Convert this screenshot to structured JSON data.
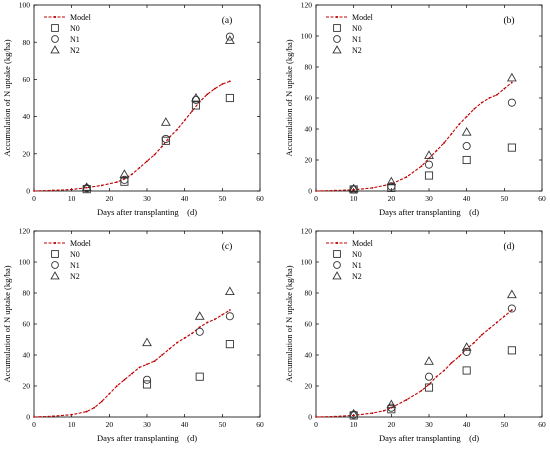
{
  "chart_data": [
    {
      "type": "scatter",
      "panel_label": "(a)",
      "xlabel": "Days after transplanting　(d)",
      "ylabel": "Accumulation of N uptake (kg/ha)",
      "xlim": [
        0,
        60
      ],
      "ylim": [
        0,
        100
      ],
      "xticks": [
        0,
        10,
        20,
        30,
        40,
        50,
        60
      ],
      "yticks": [
        0,
        20,
        40,
        60,
        80,
        100
      ],
      "legend": "top-left",
      "model": {
        "name": "Model",
        "x": [
          0,
          5,
          10,
          14,
          18,
          22,
          24,
          26,
          28,
          30,
          32,
          34,
          36,
          38,
          40,
          42,
          44,
          46,
          48,
          50,
          52
        ],
        "y": [
          0,
          0.3,
          0.8,
          1.8,
          3,
          4.8,
          6.5,
          9,
          12.5,
          16,
          19.5,
          24,
          29,
          33,
          38,
          43,
          48,
          52,
          55,
          57.5,
          59
        ]
      },
      "series": [
        {
          "name": "N0",
          "marker": "square",
          "x": [
            14,
            24,
            35,
            43,
            52
          ],
          "y": [
            1,
            5,
            27,
            46,
            50
          ]
        },
        {
          "name": "N1",
          "marker": "circle",
          "x": [
            14,
            24,
            35,
            43,
            52
          ],
          "y": [
            1.5,
            6,
            28,
            49,
            83
          ]
        },
        {
          "name": "N2",
          "marker": "triangle",
          "x": [
            14,
            24,
            35,
            43,
            52
          ],
          "y": [
            2,
            9,
            37,
            50,
            81
          ]
        }
      ]
    },
    {
      "type": "scatter",
      "panel_label": "(b)",
      "xlabel": "Days after transplanting　(d)",
      "ylabel": "Accumulation of N uptake (kg/ha)",
      "xlim": [
        0,
        60
      ],
      "ylim": [
        0,
        120
      ],
      "xticks": [
        0,
        10,
        20,
        30,
        40,
        50,
        60
      ],
      "yticks": [
        0,
        20,
        40,
        60,
        80,
        100,
        120
      ],
      "legend": "top-left",
      "model": {
        "name": "Model",
        "x": [
          0,
          5,
          10,
          15,
          20,
          24,
          28,
          30,
          32,
          34,
          36,
          38,
          40,
          42,
          44,
          46,
          48,
          50,
          52
        ],
        "y": [
          0,
          0.3,
          0.8,
          2,
          4.5,
          9,
          16,
          21,
          26,
          31,
          37,
          43,
          48,
          53,
          57,
          60,
          62,
          66,
          70
        ]
      },
      "series": [
        {
          "name": "N0",
          "marker": "square",
          "x": [
            10,
            20,
            30,
            40,
            52
          ],
          "y": [
            1,
            2,
            10,
            20,
            28
          ]
        },
        {
          "name": "N1",
          "marker": "circle",
          "x": [
            10,
            20,
            30,
            40,
            52
          ],
          "y": [
            1,
            3,
            17,
            29,
            57
          ]
        },
        {
          "name": "N2",
          "marker": "triangle",
          "x": [
            10,
            20,
            30,
            40,
            52
          ],
          "y": [
            1.5,
            6,
            23,
            38,
            73
          ]
        }
      ]
    },
    {
      "type": "scatter",
      "panel_label": "(c)",
      "xlabel": "Days after transplanting　(d)",
      "ylabel": "Accumulation of N uptake (kg/ha)",
      "xlim": [
        0,
        60
      ],
      "ylim": [
        0,
        120
      ],
      "xticks": [
        0,
        10,
        20,
        30,
        40,
        50,
        60
      ],
      "yticks": [
        0,
        20,
        40,
        60,
        80,
        100,
        120
      ],
      "legend": "top-left",
      "model": {
        "name": "Model",
        "x": [
          0,
          5,
          10,
          14,
          16,
          18,
          20,
          22,
          24,
          26,
          28,
          30,
          32,
          34,
          36,
          38,
          40,
          42,
          44,
          46,
          48,
          50,
          52
        ],
        "y": [
          0,
          0.5,
          1.5,
          3.5,
          6,
          10,
          15,
          20,
          24,
          28,
          32,
          34,
          36,
          40,
          44,
          48,
          51,
          54,
          58,
          61,
          63,
          66,
          69
        ]
      },
      "series": [
        {
          "name": "N0",
          "marker": "square",
          "x": [
            30,
            44,
            52
          ],
          "y": [
            21,
            26,
            47
          ]
        },
        {
          "name": "N1",
          "marker": "circle",
          "x": [
            30,
            44,
            52
          ],
          "y": [
            24,
            55,
            65
          ]
        },
        {
          "name": "N2",
          "marker": "triangle",
          "x": [
            30,
            44,
            52
          ],
          "y": [
            48,
            65,
            81
          ]
        }
      ]
    },
    {
      "type": "scatter",
      "panel_label": "(d)",
      "xlabel": "Days after transplanting　(d)",
      "ylabel": "Accumulation of N uptake (kg/ha)",
      "xlim": [
        0,
        60
      ],
      "ylim": [
        0,
        120
      ],
      "xticks": [
        0,
        10,
        20,
        30,
        40,
        50,
        60
      ],
      "yticks": [
        0,
        20,
        40,
        60,
        80,
        100,
        120
      ],
      "legend": "top-left",
      "model": {
        "name": "Model",
        "x": [
          0,
          5,
          10,
          15,
          18,
          20,
          24,
          28,
          30,
          32,
          34,
          36,
          38,
          40,
          42,
          44,
          46,
          48,
          50,
          52
        ],
        "y": [
          0,
          0.3,
          1,
          2.5,
          4,
          6,
          11,
          17,
          21,
          26,
          30,
          35,
          39,
          44,
          48,
          53,
          57,
          61,
          65,
          69
        ]
      },
      "series": [
        {
          "name": "N0",
          "marker": "square",
          "x": [
            10,
            20,
            30,
            40,
            52
          ],
          "y": [
            1,
            5,
            19,
            30,
            43
          ]
        },
        {
          "name": "N1",
          "marker": "circle",
          "x": [
            10,
            20,
            30,
            40,
            52
          ],
          "y": [
            1.5,
            6,
            26,
            42,
            70
          ]
        },
        {
          "name": "N2",
          "marker": "triangle",
          "x": [
            10,
            20,
            30,
            40,
            52
          ],
          "y": [
            2,
            8,
            36,
            45,
            79
          ]
        }
      ]
    }
  ],
  "colors": {
    "model_line": "#c00000",
    "axis": "#000000",
    "marker_stroke": "#333333"
  }
}
